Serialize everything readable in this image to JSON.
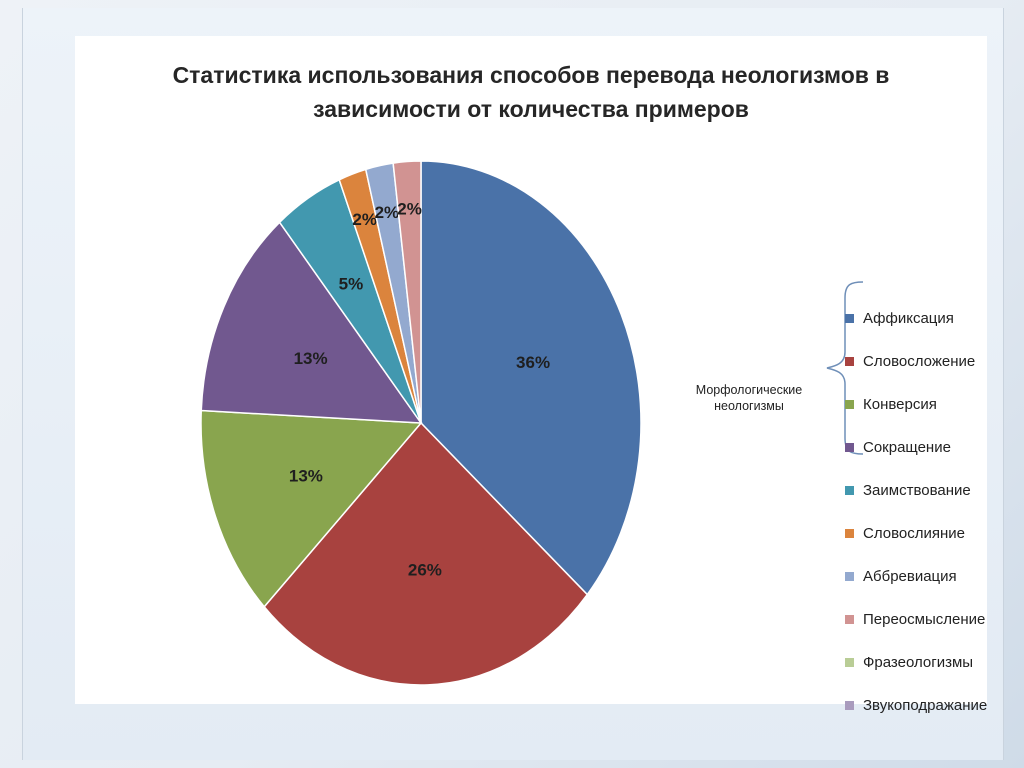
{
  "chart_data": {
    "type": "pie",
    "title": "Статистика использования способов перевода неологизмов в зависимости от количества примеров",
    "title_lines": [
      "Статистика использования способов перевода неологизмов в",
      "зависимости от количества примеров"
    ],
    "categories": [
      "Аффиксация",
      "Словосложение",
      "Конверсия",
      "Сокращение",
      "Заимствование",
      "Словослияние",
      "Аббревиация",
      "Переосмысление",
      "Фразеологизмы",
      "Звукоподражание"
    ],
    "values": [
      36,
      26,
      13,
      13,
      5,
      2,
      2,
      2,
      0,
      0
    ],
    "data_labels": [
      "36%",
      "26%",
      "13%",
      "13%",
      "5%",
      "2%",
      "2%",
      "2%",
      "",
      ""
    ],
    "colors": [
      "#4a72a8",
      "#a8423f",
      "#89a54e",
      "#71588f",
      "#4298af",
      "#db843d",
      "#93a9cf",
      "#d19392",
      "#b9cd96",
      "#a99bbd"
    ],
    "legend_placement": "right",
    "legend_group": {
      "label_lines": [
        "Морфологические",
        "неологизмы"
      ],
      "members": [
        "Аффиксация",
        "Словосложение",
        "Конверсия",
        "Сокращение"
      ]
    }
  }
}
